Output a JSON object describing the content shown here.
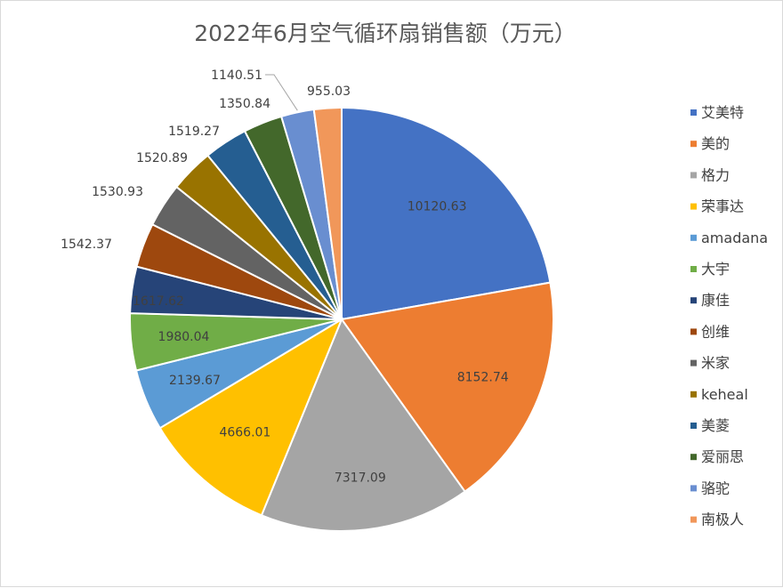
{
  "chart_data": {
    "type": "pie",
    "title": "2022年6月空气循环扇销售额（万元）",
    "legend_position": "right",
    "slices": [
      {
        "name": "艾美特",
        "value": 10120.63,
        "color": "#4472C4"
      },
      {
        "name": "美的",
        "value": 8152.74,
        "color": "#ED7D31"
      },
      {
        "name": "格力",
        "value": 7317.09,
        "color": "#A5A5A5"
      },
      {
        "name": "荣事达",
        "value": 4666.01,
        "color": "#FFC000"
      },
      {
        "name": "amadana",
        "value": 2139.67,
        "color": "#5B9BD5"
      },
      {
        "name": "大宇",
        "value": 1980.04,
        "color": "#70AD47"
      },
      {
        "name": "康佳",
        "value": 1617.62,
        "color": "#264478"
      },
      {
        "name": "创维",
        "value": 1542.37,
        "color": "#9E480E"
      },
      {
        "name": "米家",
        "value": 1530.93,
        "color": "#636363"
      },
      {
        "name": "keheal",
        "value": 1520.89,
        "color": "#997300"
      },
      {
        "name": "美菱",
        "value": 1519.27,
        "color": "#255E91"
      },
      {
        "name": "爱丽思",
        "value": 1350.84,
        "color": "#43682B"
      },
      {
        "name": "骆驼",
        "value": 1140.51,
        "color": "#698ED0"
      },
      {
        "name": "南极人",
        "value": 955.03,
        "color": "#F1975A"
      }
    ]
  }
}
